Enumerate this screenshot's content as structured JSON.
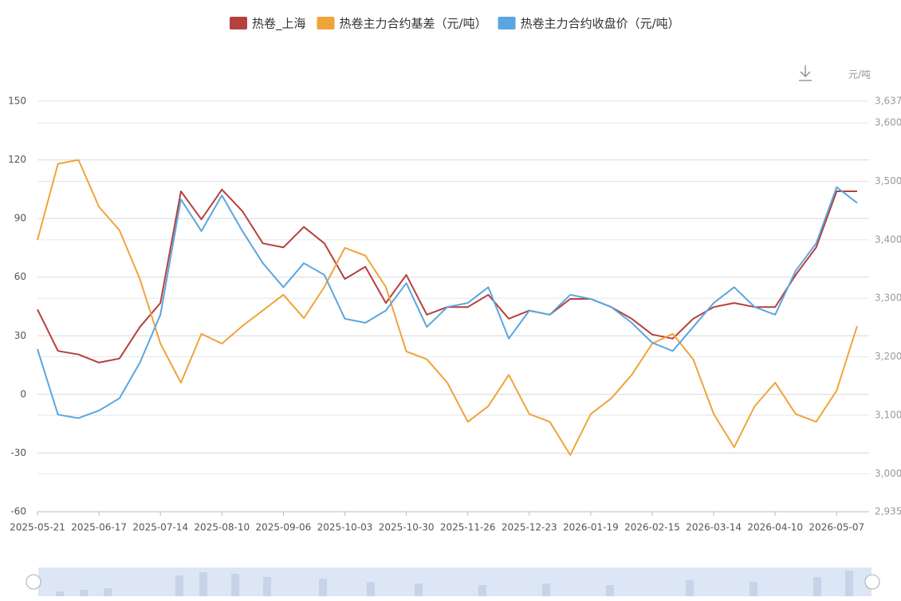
{
  "chart_data": {
    "type": "line",
    "unit": "元/吨",
    "x": [
      "2025-05-21",
      "2025-05-30",
      "2025-06-08",
      "2025-06-17",
      "2025-06-26",
      "2025-07-05",
      "2025-07-14",
      "2025-07-23",
      "2025-08-01",
      "2025-08-10",
      "2025-08-19",
      "2025-08-28",
      "2025-09-06",
      "2025-09-15",
      "2025-09-24",
      "2025-10-03",
      "2025-10-12",
      "2025-10-21",
      "2025-10-30",
      "2025-11-08",
      "2025-11-17",
      "2025-11-26",
      "2025-12-05",
      "2025-12-14",
      "2025-12-23",
      "2026-01-01",
      "2026-01-10",
      "2026-01-19",
      "2026-01-28",
      "2026-02-06",
      "2026-02-15",
      "2026-02-24",
      "2026-03-05",
      "2026-03-14",
      "2026-03-23",
      "2026-04-01",
      "2026-04-10",
      "2026-04-19",
      "2026-04-28",
      "2026-05-07",
      "2026-05-16"
    ],
    "xticks": [
      "2025-05-21",
      "2025-06-17",
      "2025-07-14",
      "2025-08-10",
      "2025-09-06",
      "2025-10-03",
      "2025-10-30",
      "2025-11-26",
      "2025-12-23",
      "2026-01-19",
      "2026-02-15",
      "2026-03-14",
      "2026-04-10",
      "2026-05-07"
    ],
    "series": [
      {
        "name": "热卷_上海",
        "color": "#b5403c",
        "axis": "y2",
        "values": [
          3281,
          3210,
          3204,
          3190,
          3197,
          3251,
          3292,
          3483,
          3435,
          3486,
          3449,
          3394,
          3387,
          3422,
          3394,
          3333,
          3354,
          3292,
          3340,
          3272,
          3285,
          3285,
          3306,
          3265,
          3279,
          3272,
          3299,
          3299,
          3285,
          3265,
          3238,
          3231,
          3265,
          3285,
          3292,
          3285,
          3285,
          3340,
          3387,
          3483,
          3483
        ]
      },
      {
        "name": "热卷主力合约基差（元/吨）",
        "color": "#f0a33a",
        "values": [
          79,
          118,
          120,
          96,
          84,
          59,
          26,
          6,
          31,
          26,
          35,
          43,
          51,
          39,
          55,
          75,
          71,
          55,
          22,
          18,
          6,
          -14,
          -6,
          10,
          -10,
          -14,
          -31,
          -10,
          -2,
          10,
          26,
          31,
          18,
          -10,
          -27,
          -6,
          6,
          -10,
          -14,
          2,
          35
        ]
      },
      {
        "name": "热卷主力合约收盘价（元/吨）",
        "color": "#5ba6e0",
        "axis": "y2",
        "values": [
          3213,
          3101,
          3095,
          3108,
          3129,
          3190,
          3272,
          3469,
          3415,
          3476,
          3415,
          3360,
          3319,
          3360,
          3340,
          3265,
          3258,
          3279,
          3326,
          3251,
          3285,
          3292,
          3319,
          3231,
          3279,
          3272,
          3306,
          3299,
          3285,
          3258,
          3224,
          3210,
          3251,
          3292,
          3319,
          3285,
          3272,
          3347,
          3394,
          3490,
          3463
        ]
      }
    ],
    "ylim": [
      -60,
      150
    ],
    "yticks": [
      -60,
      -30,
      0,
      30,
      60,
      90,
      120,
      150
    ],
    "y2lim": [
      2935,
      3637
    ],
    "y2ticks": [
      {
        "value": 2935,
        "label": "2,935"
      },
      {
        "value": 3000,
        "label": "3,000"
      },
      {
        "value": 3100,
        "label": "3,100"
      },
      {
        "value": 3200,
        "label": "3,200"
      },
      {
        "value": 3300,
        "label": "3,300"
      },
      {
        "value": 3400,
        "label": "3,400"
      },
      {
        "value": 3500,
        "label": "3,500"
      },
      {
        "value": 3600,
        "label": "3,600"
      },
      {
        "value": 3637,
        "label": "3,637"
      }
    ],
    "grid": true
  }
}
